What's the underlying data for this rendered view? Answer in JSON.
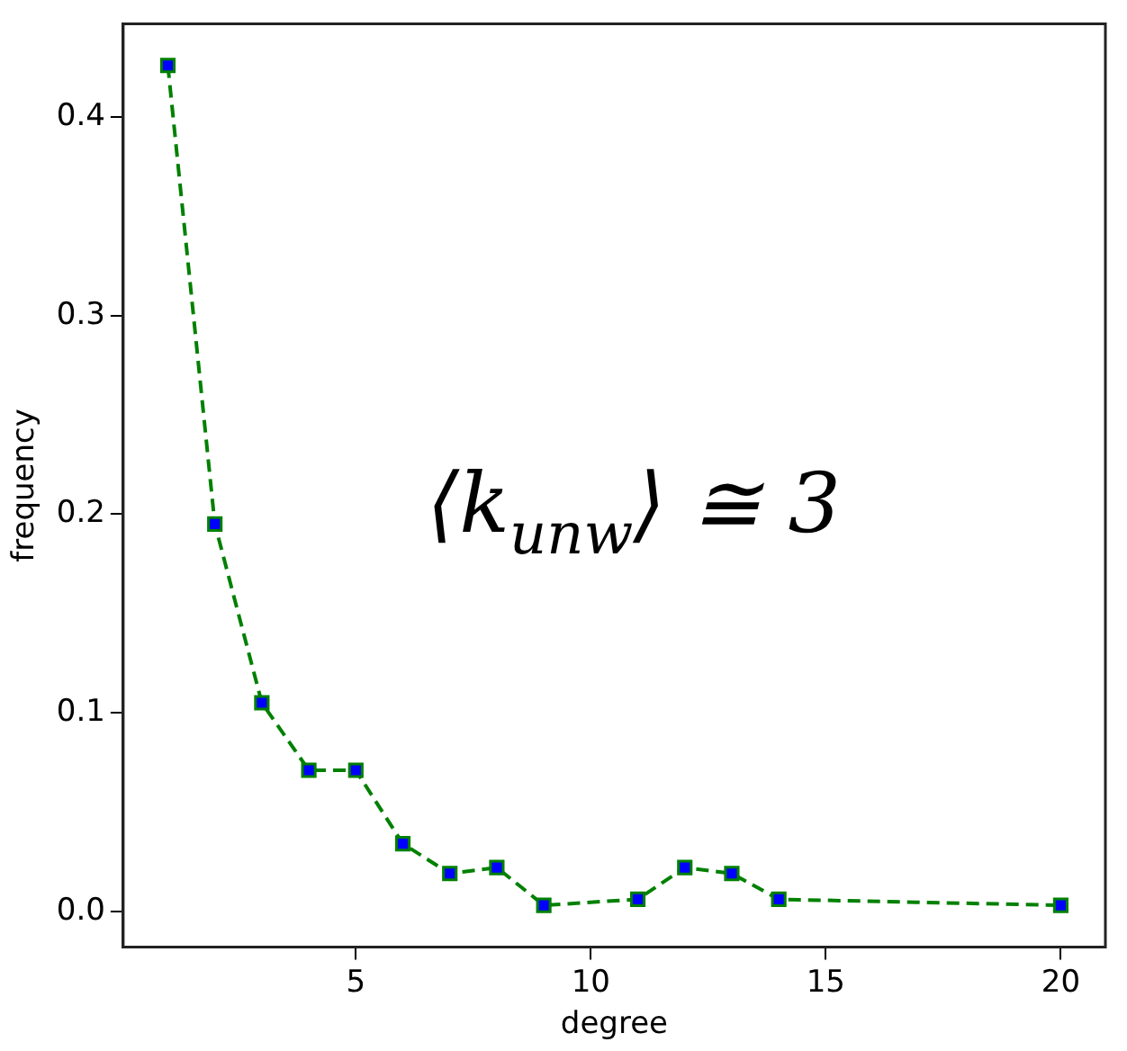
{
  "chart_data": {
    "type": "line",
    "xlabel": "degree",
    "ylabel": "frequency",
    "x": [
      1,
      2,
      3,
      4,
      5,
      6,
      7,
      8,
      9,
      11,
      12,
      13,
      14,
      20
    ],
    "series": [
      {
        "color": "#0000ff",
        "values": [
          0.426,
          0.195,
          0.105,
          0.071,
          0.071,
          0.034,
          0.019,
          0.022,
          0.003,
          0.006,
          0.022,
          0.019,
          0.006,
          0.003
        ]
      }
    ],
    "xlim": [
      0.05,
      20.95
    ],
    "ylim": [
      -0.018,
      0.447
    ],
    "xticks": [
      5,
      10,
      15,
      20
    ],
    "yticks": [
      {
        "value": 0,
        "label": "0.0"
      },
      {
        "value": 0.1,
        "label": "0.1"
      },
      {
        "value": 0.2,
        "label": "0.2"
      },
      {
        "value": 0.3,
        "label": "0.3"
      },
      {
        "value": 0.4,
        "label": "0.4"
      }
    ],
    "marker": "square",
    "line_style": "dashed",
    "grid": false,
    "legend": false,
    "annotations": [
      "⟨k$_{unw}$⟩ ≅ 3"
    ]
  }
}
